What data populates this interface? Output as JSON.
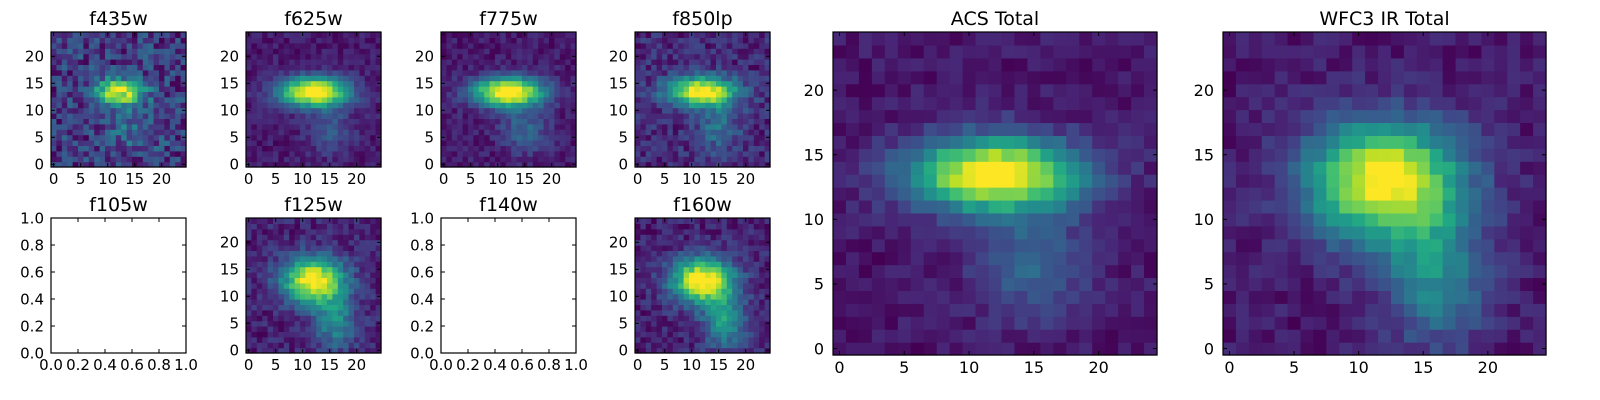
{
  "chart_data": [
    {
      "type": "heatmap",
      "title": "f435w",
      "colormap": "viridis",
      "image_size": 25,
      "xlim": [
        -0.5,
        24.5
      ],
      "ylim": [
        -0.5,
        24.5
      ],
      "xticks": [
        0,
        5,
        10,
        15,
        20
      ],
      "yticks": [
        0,
        5,
        10,
        15,
        20
      ],
      "source": {
        "cx": 12.2,
        "cy": 13.5,
        "sx": 3.2,
        "sy": 1.7,
        "amp": 1.0
      },
      "extensions": [
        {
          "cx": 15,
          "cy": 7,
          "sx": 3,
          "sy": 3,
          "amp": 0.25
        }
      ],
      "background": 0.22,
      "noise": 0.22
    },
    {
      "type": "heatmap",
      "title": "f625w",
      "colormap": "viridis",
      "image_size": 25,
      "xlim": [
        -0.5,
        24.5
      ],
      "ylim": [
        -0.5,
        24.5
      ],
      "xticks": [
        0,
        5,
        10,
        15,
        20
      ],
      "yticks": [
        0,
        5,
        10,
        15,
        20
      ],
      "source": {
        "cx": 12.0,
        "cy": 13.5,
        "sx": 4.5,
        "sy": 1.9,
        "amp": 1.0
      },
      "extensions": [
        {
          "cx": 15,
          "cy": 6.5,
          "sx": 3,
          "sy": 3,
          "amp": 0.2
        }
      ],
      "background": 0.06,
      "noise": 0.07
    },
    {
      "type": "heatmap",
      "title": "f775w",
      "colormap": "viridis",
      "image_size": 25,
      "xlim": [
        -0.5,
        24.5
      ],
      "ylim": [
        -0.5,
        24.5
      ],
      "xticks": [
        0,
        5,
        10,
        15,
        20
      ],
      "yticks": [
        0,
        5,
        10,
        15,
        20
      ],
      "source": {
        "cx": 12.0,
        "cy": 13.5,
        "sx": 4.5,
        "sy": 1.9,
        "amp": 1.0
      },
      "extensions": [
        {
          "cx": 15,
          "cy": 6.5,
          "sx": 3,
          "sy": 3,
          "amp": 0.25
        }
      ],
      "background": 0.06,
      "noise": 0.07
    },
    {
      "type": "heatmap",
      "title": "f850lp",
      "colormap": "viridis",
      "image_size": 25,
      "xlim": [
        -0.5,
        24.5
      ],
      "ylim": [
        -0.5,
        24.5
      ],
      "xticks": [
        0,
        5,
        10,
        15,
        20
      ],
      "yticks": [
        0,
        5,
        10,
        15,
        20
      ],
      "source": {
        "cx": 12.0,
        "cy": 13.5,
        "sx": 4.5,
        "sy": 1.9,
        "amp": 1.0
      },
      "extensions": [
        {
          "cx": 15,
          "cy": 6.5,
          "sx": 3,
          "sy": 3,
          "amp": 0.25
        }
      ],
      "background": 0.12,
      "noise": 0.12
    },
    {
      "type": "heatmap",
      "title": "ACS Total",
      "colormap": "viridis",
      "image_size": 25,
      "xlim": [
        -0.5,
        24.5
      ],
      "ylim": [
        -0.5,
        24.5
      ],
      "xticks": [
        0,
        5,
        10,
        15,
        20
      ],
      "yticks": [
        0,
        5,
        10,
        15,
        20
      ],
      "source": {
        "cx": 12.0,
        "cy": 13.5,
        "sx": 4.6,
        "sy": 2.0,
        "amp": 1.0
      },
      "extensions": [
        {
          "cx": 15,
          "cy": 6.5,
          "sx": 3,
          "sy": 3,
          "amp": 0.25
        }
      ],
      "background": 0.06,
      "noise": 0.06
    },
    {
      "type": "heatmap",
      "title": "WFC3 IR Total",
      "colormap": "viridis",
      "image_size": 25,
      "xlim": [
        -0.5,
        24.5
      ],
      "ylim": [
        -0.5,
        24.5
      ],
      "xticks": [
        0,
        5,
        10,
        15,
        20
      ],
      "yticks": [
        0,
        5,
        10,
        15,
        20
      ],
      "source": {
        "cx": 12.0,
        "cy": 13.0,
        "sx": 4.2,
        "sy": 3.2,
        "amp": 1.0
      },
      "extensions": [
        {
          "cx": 16,
          "cy": 5.5,
          "sx": 2.8,
          "sy": 3.6,
          "amp": 0.4
        }
      ],
      "background": 0.08,
      "noise": 0.07
    },
    {
      "type": "empty",
      "title": "f105w",
      "xlim": [
        0,
        1
      ],
      "ylim": [
        0,
        1
      ],
      "xticks": [
        0.0,
        0.2,
        0.4,
        0.6,
        0.8,
        1.0
      ],
      "yticks": [
        0.0,
        0.2,
        0.4,
        0.6,
        0.8,
        1.0
      ]
    },
    {
      "type": "heatmap",
      "title": "f125w",
      "colormap": "viridis",
      "image_size": 25,
      "xlim": [
        -0.5,
        24.5
      ],
      "ylim": [
        -0.5,
        24.5
      ],
      "xticks": [
        0,
        5,
        10,
        15,
        20
      ],
      "yticks": [
        0,
        5,
        10,
        15,
        20
      ],
      "source": {
        "cx": 12.0,
        "cy": 13.0,
        "sx": 4.0,
        "sy": 3.0,
        "amp": 1.0
      },
      "extensions": [
        {
          "cx": 16,
          "cy": 5.5,
          "sx": 2.8,
          "sy": 3.6,
          "amp": 0.4
        }
      ],
      "background": 0.1,
      "noise": 0.1
    },
    {
      "type": "empty",
      "title": "f140w",
      "xlim": [
        0,
        1
      ],
      "ylim": [
        0,
        1
      ],
      "xticks": [
        0.0,
        0.2,
        0.4,
        0.6,
        0.8,
        1.0
      ],
      "yticks": [
        0.0,
        0.2,
        0.4,
        0.6,
        0.8,
        1.0
      ]
    },
    {
      "type": "heatmap",
      "title": "f160w",
      "colormap": "viridis",
      "image_size": 25,
      "xlim": [
        -0.5,
        24.5
      ],
      "ylim": [
        -0.5,
        24.5
      ],
      "xticks": [
        0,
        5,
        10,
        15,
        20
      ],
      "yticks": [
        0,
        5,
        10,
        15,
        20
      ],
      "source": {
        "cx": 12.0,
        "cy": 13.0,
        "sx": 4.0,
        "sy": 2.9,
        "amp": 1.0
      },
      "extensions": [
        {
          "cx": 16,
          "cy": 5.5,
          "sx": 2.8,
          "sy": 3.6,
          "amp": 0.45
        }
      ],
      "background": 0.1,
      "noise": 0.1
    }
  ]
}
